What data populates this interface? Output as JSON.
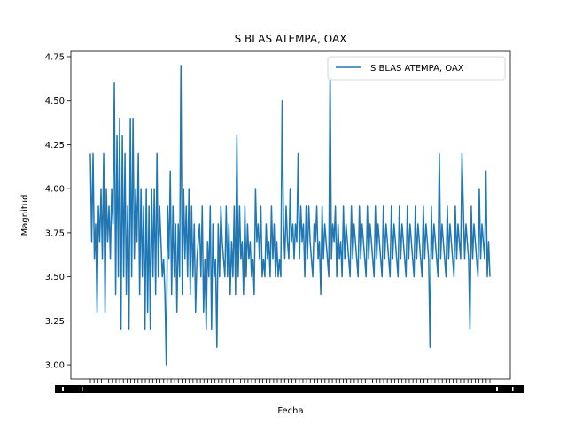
{
  "chart_data": {
    "type": "line",
    "title": "S BLAS ATEMPA, OAX",
    "xlabel": "Fecha",
    "ylabel": "Magnitud",
    "ylim": [
      2.92,
      4.78
    ],
    "yticks": [
      "3.00",
      "3.25",
      "3.50",
      "3.75",
      "4.00",
      "4.25",
      "4.50",
      "4.75"
    ],
    "xticks_note": "dense overlapping date tick labels (unreadable)",
    "legend_position": "top-right",
    "grid": false,
    "colors": {
      "series": "#1f77b4",
      "axis": "#000000",
      "background": "#ffffff"
    },
    "series": [
      {
        "name": "S BLAS ATEMPA, OAX",
        "values": [
          4.2,
          3.7,
          4.2,
          3.6,
          3.8,
          3.3,
          3.9,
          3.7,
          4.0,
          3.6,
          4.2,
          3.3,
          4.0,
          3.7,
          3.9,
          3.6,
          4.0,
          3.8,
          4.6,
          3.4,
          4.3,
          3.5,
          4.4,
          3.2,
          4.3,
          3.5,
          4.2,
          3.4,
          3.9,
          3.2,
          4.4,
          3.5,
          4.4,
          3.6,
          4.0,
          3.7,
          4.2,
          3.4,
          4.0,
          3.5,
          3.9,
          3.2,
          4.0,
          3.3,
          3.9,
          3.2,
          4.0,
          3.5,
          4.0,
          3.4,
          4.2,
          3.5,
          3.9,
          3.7,
          3.5,
          3.6,
          3.4,
          3.0,
          3.9,
          3.6,
          4.1,
          3.4,
          3.9,
          3.5,
          3.8,
          3.3,
          3.8,
          3.5,
          4.7,
          3.4,
          4.0,
          3.6,
          3.9,
          3.5,
          4.0,
          3.4,
          3.9,
          3.5,
          3.8,
          3.3,
          3.6,
          3.7,
          3.8,
          3.5,
          3.9,
          3.3,
          3.6,
          3.2,
          3.7,
          3.5,
          3.9,
          3.2,
          3.8,
          3.5,
          3.6,
          3.1,
          3.8,
          3.5,
          3.9,
          3.7,
          3.6,
          3.5,
          3.9,
          3.5,
          3.8,
          3.4,
          3.7,
          3.5,
          3.9,
          3.4,
          4.3,
          3.5,
          3.9,
          3.6,
          3.7,
          3.4,
          3.9,
          3.5,
          3.8,
          3.6,
          3.7,
          3.5,
          3.6,
          3.4,
          4.0,
          3.7,
          3.8,
          3.6,
          3.9,
          3.5,
          3.6,
          3.5,
          3.8,
          3.6,
          3.7,
          3.5,
          3.9,
          3.6,
          3.8,
          3.5,
          3.7,
          3.5,
          3.6,
          3.5,
          4.5,
          3.8,
          3.6,
          3.9,
          3.7,
          3.6,
          4.0,
          3.7,
          3.8,
          3.6,
          3.8,
          3.7,
          4.2,
          3.6,
          3.9,
          3.7,
          3.8,
          3.5,
          3.9,
          3.6,
          3.9,
          3.7,
          3.6,
          3.5,
          3.8,
          3.7,
          3.9,
          3.6,
          3.7,
          3.4,
          3.9,
          3.6,
          3.8,
          3.7,
          3.6,
          3.5,
          4.7,
          3.6,
          3.8,
          3.7,
          3.9,
          3.5,
          3.8,
          3.6,
          3.7,
          3.5,
          3.9,
          3.6,
          3.8,
          3.7,
          3.6,
          3.5,
          3.9,
          3.6,
          3.8,
          3.7,
          3.6,
          3.5,
          3.9,
          3.6,
          3.8,
          3.7,
          3.6,
          3.5,
          3.9,
          3.6,
          3.8,
          3.7,
          3.6,
          3.5,
          3.9,
          3.6,
          3.8,
          3.7,
          3.6,
          3.5,
          3.9,
          3.6,
          3.8,
          3.7,
          3.6,
          3.5,
          3.9,
          3.6,
          3.8,
          3.7,
          3.6,
          3.5,
          3.9,
          3.6,
          3.8,
          3.7,
          3.6,
          3.5,
          3.9,
          3.6,
          3.8,
          3.7,
          3.6,
          3.5,
          3.9,
          3.6,
          3.8,
          3.7,
          3.6,
          3.5,
          3.9,
          3.6,
          3.8,
          3.7,
          3.6,
          3.1,
          3.9,
          3.6,
          3.8,
          3.7,
          3.6,
          3.5,
          4.2,
          3.6,
          3.8,
          3.7,
          3.6,
          3.5,
          3.9,
          3.6,
          3.8,
          3.7,
          3.6,
          3.5,
          3.9,
          3.6,
          3.8,
          3.7,
          3.6,
          4.2,
          3.9,
          3.6,
          3.8,
          3.7,
          3.6,
          3.2,
          3.9,
          3.6,
          3.8,
          3.7,
          3.6,
          3.5,
          4.0,
          3.6,
          3.8,
          3.7,
          3.6,
          4.1,
          3.5,
          3.7,
          3.5
        ]
      }
    ]
  }
}
